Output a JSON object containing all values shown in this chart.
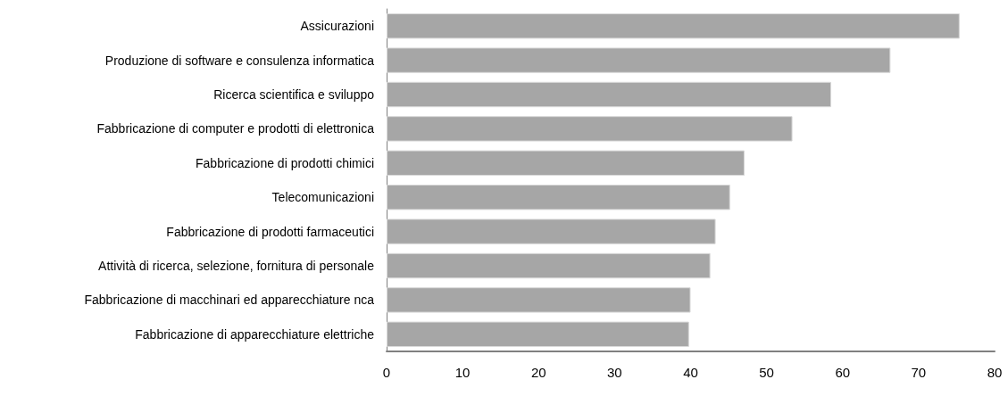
{
  "chart_data": {
    "type": "bar",
    "orientation": "horizontal",
    "categories": [
      "Assicurazioni",
      "Produzione di software e consulenza informatica",
      "Ricerca scientifica e sviluppo",
      "Fabbricazione di computer e prodotti di elettronica",
      "Fabbricazione di prodotti chimici",
      "Telecomunicazioni",
      "Fabbricazione di prodotti farmaceutici",
      "Attività di ricerca, selezione, fornitura di personale",
      "Fabbricazione di macchinari ed apparecchiature nca",
      "Fabbricazione di apparecchiature elettriche"
    ],
    "values": [
      75.4,
      66.3,
      58.5,
      53.4,
      47.1,
      45.2,
      43.3,
      42.6,
      40.0,
      39.8
    ],
    "color": "#a6a6a6",
    "xlim": [
      0,
      80
    ],
    "xticks": [
      0,
      10,
      20,
      30,
      40,
      50,
      60,
      70,
      80
    ],
    "grid": false
  }
}
